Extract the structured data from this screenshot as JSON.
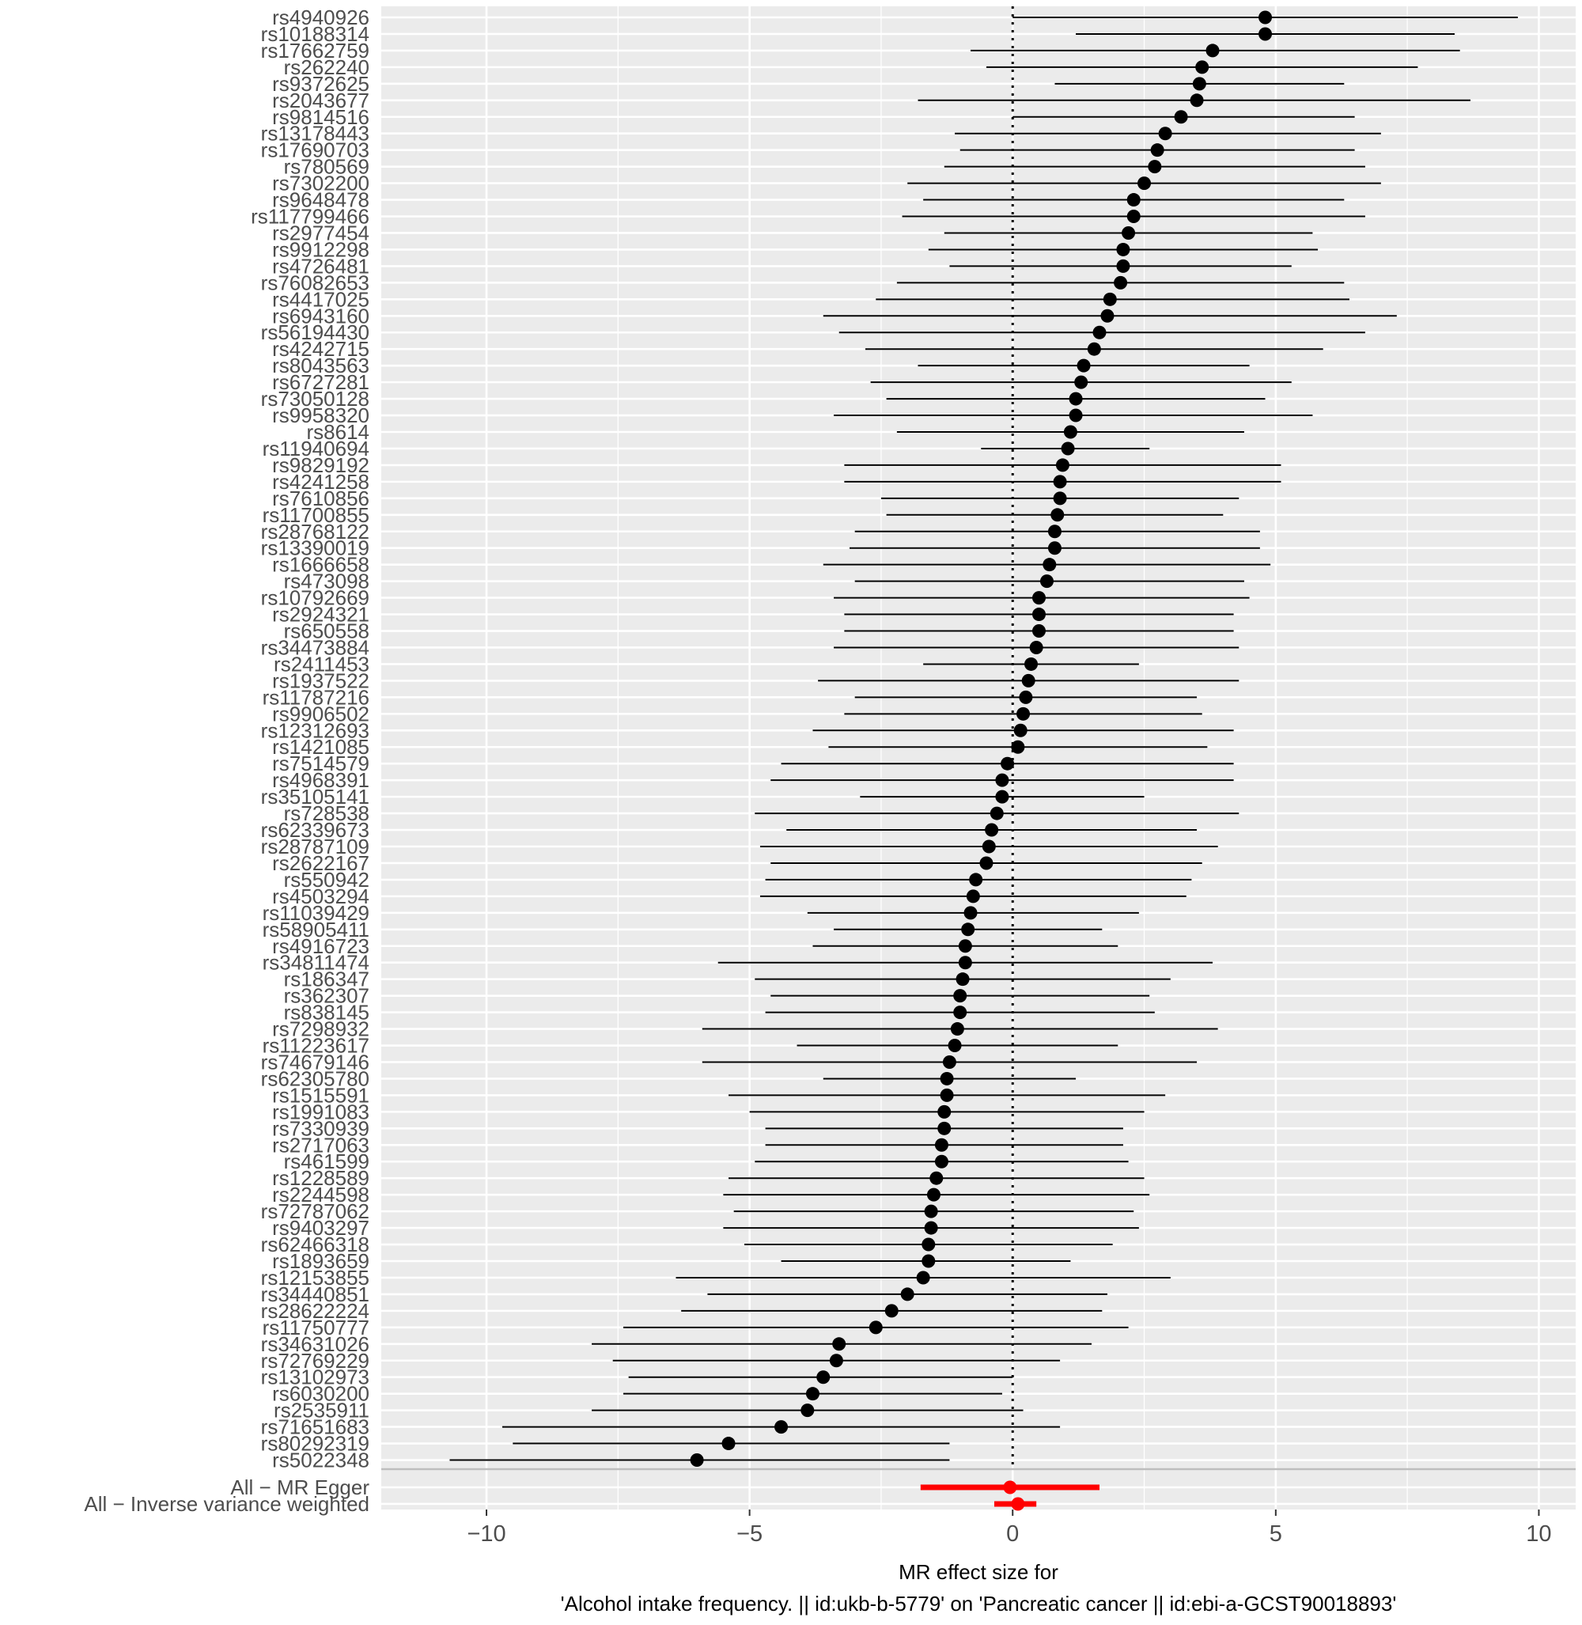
{
  "chart_data": {
    "type": "forest",
    "xlabel_line1": "MR effect size for",
    "xlabel_line2": "'Alcohol intake frequency. || id:ukb-b-5779' on 'Pancreatic cancer || id:ebi-a-GCST90018893'",
    "xlim": [
      -12,
      10.7
    ],
    "xticks": [
      {
        "value": -10,
        "label": "−10"
      },
      {
        "value": -5,
        "label": "−5"
      },
      {
        "value": 0,
        "label": "0"
      },
      {
        "value": 5,
        "label": "5"
      },
      {
        "value": 10,
        "label": "10"
      }
    ],
    "reference_line": 0,
    "grid": true,
    "colors": {
      "snp": "#000000",
      "summary": "#ff0000",
      "panel_bg": "#ebebeb",
      "grid": "#ffffff"
    },
    "snps": [
      {
        "label": "rs4940926",
        "est": 4.8,
        "lo": 0.0,
        "hi": 9.6
      },
      {
        "label": "rs10188314",
        "est": 4.8,
        "lo": 1.2,
        "hi": 8.4
      },
      {
        "label": "rs17662759",
        "est": 3.8,
        "lo": -0.8,
        "hi": 8.5
      },
      {
        "label": "rs262240",
        "est": 3.6,
        "lo": -0.5,
        "hi": 7.7
      },
      {
        "label": "rs9372625",
        "est": 3.55,
        "lo": 0.8,
        "hi": 6.3
      },
      {
        "label": "rs2043677",
        "est": 3.5,
        "lo": -1.8,
        "hi": 8.7
      },
      {
        "label": "rs9814516",
        "est": 3.2,
        "lo": 0.0,
        "hi": 6.5
      },
      {
        "label": "rs13178443",
        "est": 2.9,
        "lo": -1.1,
        "hi": 7.0
      },
      {
        "label": "rs17690703",
        "est": 2.75,
        "lo": -1.0,
        "hi": 6.5
      },
      {
        "label": "rs780569",
        "est": 2.7,
        "lo": -1.3,
        "hi": 6.7
      },
      {
        "label": "rs7302200",
        "est": 2.5,
        "lo": -2.0,
        "hi": 7.0
      },
      {
        "label": "rs9648478",
        "est": 2.3,
        "lo": -1.7,
        "hi": 6.3
      },
      {
        "label": "rs117799466",
        "est": 2.3,
        "lo": -2.1,
        "hi": 6.7
      },
      {
        "label": "rs2977454",
        "est": 2.2,
        "lo": -1.3,
        "hi": 5.7
      },
      {
        "label": "rs9912298",
        "est": 2.1,
        "lo": -1.6,
        "hi": 5.8
      },
      {
        "label": "rs4726481",
        "est": 2.1,
        "lo": -1.2,
        "hi": 5.3
      },
      {
        "label": "rs76082653",
        "est": 2.05,
        "lo": -2.2,
        "hi": 6.3
      },
      {
        "label": "rs4417025",
        "est": 1.85,
        "lo": -2.6,
        "hi": 6.4
      },
      {
        "label": "rs6943160",
        "est": 1.8,
        "lo": -3.6,
        "hi": 7.3
      },
      {
        "label": "rs56194430",
        "est": 1.65,
        "lo": -3.3,
        "hi": 6.7
      },
      {
        "label": "rs4242715",
        "est": 1.55,
        "lo": -2.8,
        "hi": 5.9
      },
      {
        "label": "rs8043563",
        "est": 1.35,
        "lo": -1.8,
        "hi": 4.5
      },
      {
        "label": "rs6727281",
        "est": 1.3,
        "lo": -2.7,
        "hi": 5.3
      },
      {
        "label": "rs73050128",
        "est": 1.2,
        "lo": -2.4,
        "hi": 4.8
      },
      {
        "label": "rs9958320",
        "est": 1.2,
        "lo": -3.4,
        "hi": 5.7
      },
      {
        "label": "rs8614",
        "est": 1.1,
        "lo": -2.2,
        "hi": 4.4
      },
      {
        "label": "rs11940694",
        "est": 1.05,
        "lo": -0.6,
        "hi": 2.6
      },
      {
        "label": "rs9829192",
        "est": 0.95,
        "lo": -3.2,
        "hi": 5.1
      },
      {
        "label": "rs4241258",
        "est": 0.9,
        "lo": -3.2,
        "hi": 5.1
      },
      {
        "label": "rs7610856",
        "est": 0.9,
        "lo": -2.5,
        "hi": 4.3
      },
      {
        "label": "rs11700855",
        "est": 0.85,
        "lo": -2.4,
        "hi": 4.0
      },
      {
        "label": "rs28768122",
        "est": 0.8,
        "lo": -3.0,
        "hi": 4.7
      },
      {
        "label": "rs13390019",
        "est": 0.8,
        "lo": -3.1,
        "hi": 4.7
      },
      {
        "label": "rs1666658",
        "est": 0.7,
        "lo": -3.6,
        "hi": 4.9
      },
      {
        "label": "rs473098",
        "est": 0.65,
        "lo": -3.0,
        "hi": 4.4
      },
      {
        "label": "rs10792669",
        "est": 0.5,
        "lo": -3.4,
        "hi": 4.5
      },
      {
        "label": "rs2924321",
        "est": 0.5,
        "lo": -3.2,
        "hi": 4.2
      },
      {
        "label": "rs650558",
        "est": 0.5,
        "lo": -3.2,
        "hi": 4.2
      },
      {
        "label": "rs34473884",
        "est": 0.45,
        "lo": -3.4,
        "hi": 4.3
      },
      {
        "label": "rs2411453",
        "est": 0.35,
        "lo": -1.7,
        "hi": 2.4
      },
      {
        "label": "rs1937522",
        "est": 0.3,
        "lo": -3.7,
        "hi": 4.3
      },
      {
        "label": "rs11787216",
        "est": 0.25,
        "lo": -3.0,
        "hi": 3.5
      },
      {
        "label": "rs9906502",
        "est": 0.2,
        "lo": -3.2,
        "hi": 3.6
      },
      {
        "label": "rs12312693",
        "est": 0.15,
        "lo": -3.8,
        "hi": 4.2
      },
      {
        "label": "rs1421085",
        "est": 0.1,
        "lo": -3.5,
        "hi": 3.7
      },
      {
        "label": "rs7514579",
        "est": -0.1,
        "lo": -4.4,
        "hi": 4.2
      },
      {
        "label": "rs4968391",
        "est": -0.2,
        "lo": -4.6,
        "hi": 4.2
      },
      {
        "label": "rs35105141",
        "est": -0.2,
        "lo": -2.9,
        "hi": 2.5
      },
      {
        "label": "rs728538",
        "est": -0.3,
        "lo": -4.9,
        "hi": 4.3
      },
      {
        "label": "rs62339673",
        "est": -0.4,
        "lo": -4.3,
        "hi": 3.5
      },
      {
        "label": "rs28787109",
        "est": -0.45,
        "lo": -4.8,
        "hi": 3.9
      },
      {
        "label": "rs2622167",
        "est": -0.5,
        "lo": -4.6,
        "hi": 3.6
      },
      {
        "label": "rs550942",
        "est": -0.7,
        "lo": -4.7,
        "hi": 3.4
      },
      {
        "label": "rs4503294",
        "est": -0.75,
        "lo": -4.8,
        "hi": 3.3
      },
      {
        "label": "rs11039429",
        "est": -0.8,
        "lo": -3.9,
        "hi": 2.4
      },
      {
        "label": "rs58905411",
        "est": -0.85,
        "lo": -3.4,
        "hi": 1.7
      },
      {
        "label": "rs4916723",
        "est": -0.9,
        "lo": -3.8,
        "hi": 2.0
      },
      {
        "label": "rs34811474",
        "est": -0.9,
        "lo": -5.6,
        "hi": 3.8
      },
      {
        "label": "rs186347",
        "est": -0.95,
        "lo": -4.9,
        "hi": 3.0
      },
      {
        "label": "rs362307",
        "est": -1.0,
        "lo": -4.6,
        "hi": 2.6
      },
      {
        "label": "rs838145",
        "est": -1.0,
        "lo": -4.7,
        "hi": 2.7
      },
      {
        "label": "rs7298932",
        "est": -1.05,
        "lo": -5.9,
        "hi": 3.9
      },
      {
        "label": "rs11223617",
        "est": -1.1,
        "lo": -4.1,
        "hi": 2.0
      },
      {
        "label": "rs74679146",
        "est": -1.2,
        "lo": -5.9,
        "hi": 3.5
      },
      {
        "label": "rs62305780",
        "est": -1.25,
        "lo": -3.6,
        "hi": 1.2
      },
      {
        "label": "rs1515591",
        "est": -1.25,
        "lo": -5.4,
        "hi": 2.9
      },
      {
        "label": "rs1991083",
        "est": -1.3,
        "lo": -5.0,
        "hi": 2.5
      },
      {
        "label": "rs7330939",
        "est": -1.3,
        "lo": -4.7,
        "hi": 2.1
      },
      {
        "label": "rs2717063",
        "est": -1.35,
        "lo": -4.7,
        "hi": 2.1
      },
      {
        "label": "rs461599",
        "est": -1.35,
        "lo": -4.9,
        "hi": 2.2
      },
      {
        "label": "rs1228589",
        "est": -1.45,
        "lo": -5.4,
        "hi": 2.5
      },
      {
        "label": "rs2244598",
        "est": -1.5,
        "lo": -5.5,
        "hi": 2.6
      },
      {
        "label": "rs72787062",
        "est": -1.55,
        "lo": -5.3,
        "hi": 2.3
      },
      {
        "label": "rs9403297",
        "est": -1.55,
        "lo": -5.5,
        "hi": 2.4
      },
      {
        "label": "rs62466318",
        "est": -1.6,
        "lo": -5.1,
        "hi": 1.9
      },
      {
        "label": "rs1893659",
        "est": -1.6,
        "lo": -4.4,
        "hi": 1.1
      },
      {
        "label": "rs12153855",
        "est": -1.7,
        "lo": -6.4,
        "hi": 3.0
      },
      {
        "label": "rs34440851",
        "est": -2.0,
        "lo": -5.8,
        "hi": 1.8
      },
      {
        "label": "rs28622224",
        "est": -2.3,
        "lo": -6.3,
        "hi": 1.7
      },
      {
        "label": "rs11750777",
        "est": -2.6,
        "lo": -7.4,
        "hi": 2.2
      },
      {
        "label": "rs34631026",
        "est": -3.3,
        "lo": -8.0,
        "hi": 1.5
      },
      {
        "label": "rs72769229",
        "est": -3.35,
        "lo": -7.6,
        "hi": 0.9
      },
      {
        "label": "rs13102973",
        "est": -3.6,
        "lo": -7.3,
        "hi": 0.0
      },
      {
        "label": "rs6030200",
        "est": -3.8,
        "lo": -7.4,
        "hi": -0.2
      },
      {
        "label": "rs2535911",
        "est": -3.9,
        "lo": -8.0,
        "hi": 0.2
      },
      {
        "label": "rs71651683",
        "est": -4.4,
        "lo": -9.7,
        "hi": 0.9
      },
      {
        "label": "rs80292319",
        "est": -5.4,
        "lo": -9.5,
        "hi": -1.2
      },
      {
        "label": "rs5022348",
        "est": -6.0,
        "lo": -10.7,
        "hi": -1.2
      }
    ],
    "summaries": [
      {
        "label": "All − MR Egger",
        "est": -0.05,
        "lo": -1.75,
        "hi": 1.65
      },
      {
        "label": "All − Inverse variance weighted",
        "est": 0.1,
        "lo": -0.35,
        "hi": 0.45
      }
    ]
  }
}
